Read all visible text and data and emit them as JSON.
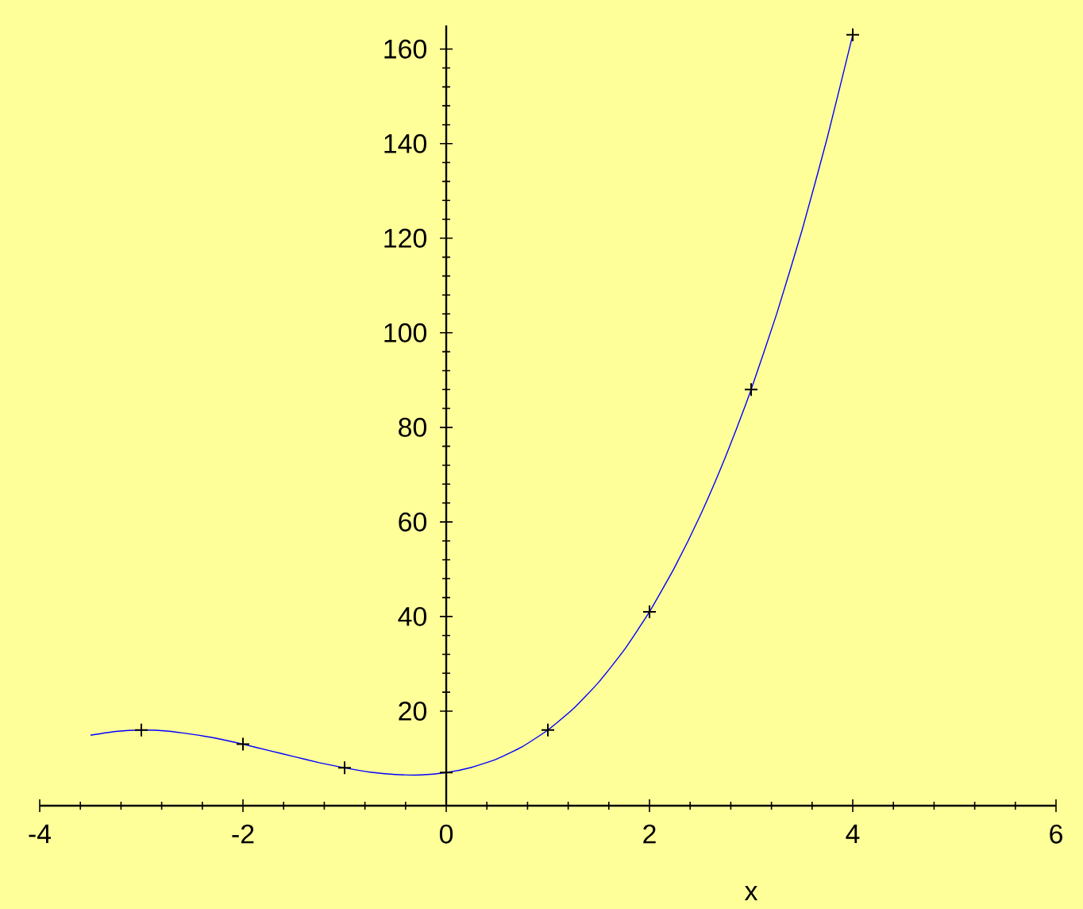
{
  "chart_data": {
    "type": "line",
    "xlabel": "x",
    "xlim": [
      -4,
      6
    ],
    "ylim": [
      0,
      165
    ],
    "xticks": [
      -4,
      -2,
      0,
      2,
      4,
      6
    ],
    "yticks": [
      20,
      40,
      60,
      80,
      100,
      120,
      140,
      160
    ],
    "grid": false,
    "line_style": "solid",
    "series": [
      {
        "color": "#0000ff",
        "marker": "none",
        "x": [
          -3.5,
          -3.25,
          -3,
          -2.75,
          -2.5,
          -2.25,
          -2,
          -1.75,
          -1.5,
          -1.25,
          -1,
          -0.75,
          -0.5,
          -0.25,
          0,
          0.25,
          0.5,
          0.75,
          1,
          1.25,
          1.5,
          1.75,
          2,
          2.25,
          2.5,
          2.75,
          3,
          3.25,
          3.5,
          3.75,
          4
        ],
        "values": [
          14.9,
          15.7,
          16,
          15.8,
          15.1,
          14.2,
          13,
          11.7,
          10.4,
          9.1,
          8,
          7.1,
          6.6,
          6.5,
          7,
          8.1,
          9.9,
          12.5,
          16,
          20.5,
          26.1,
          32.9,
          41,
          50.5,
          61.4,
          73.9,
          88,
          103.9,
          121.6,
          141.3,
          163
        ]
      },
      {
        "type": "scatter",
        "color": "#000000",
        "marker": "cross",
        "x": [
          -3,
          -2,
          -1,
          0,
          1,
          2,
          3,
          4
        ],
        "values": [
          16,
          13,
          8,
          7,
          16,
          41,
          88,
          163
        ]
      }
    ]
  }
}
